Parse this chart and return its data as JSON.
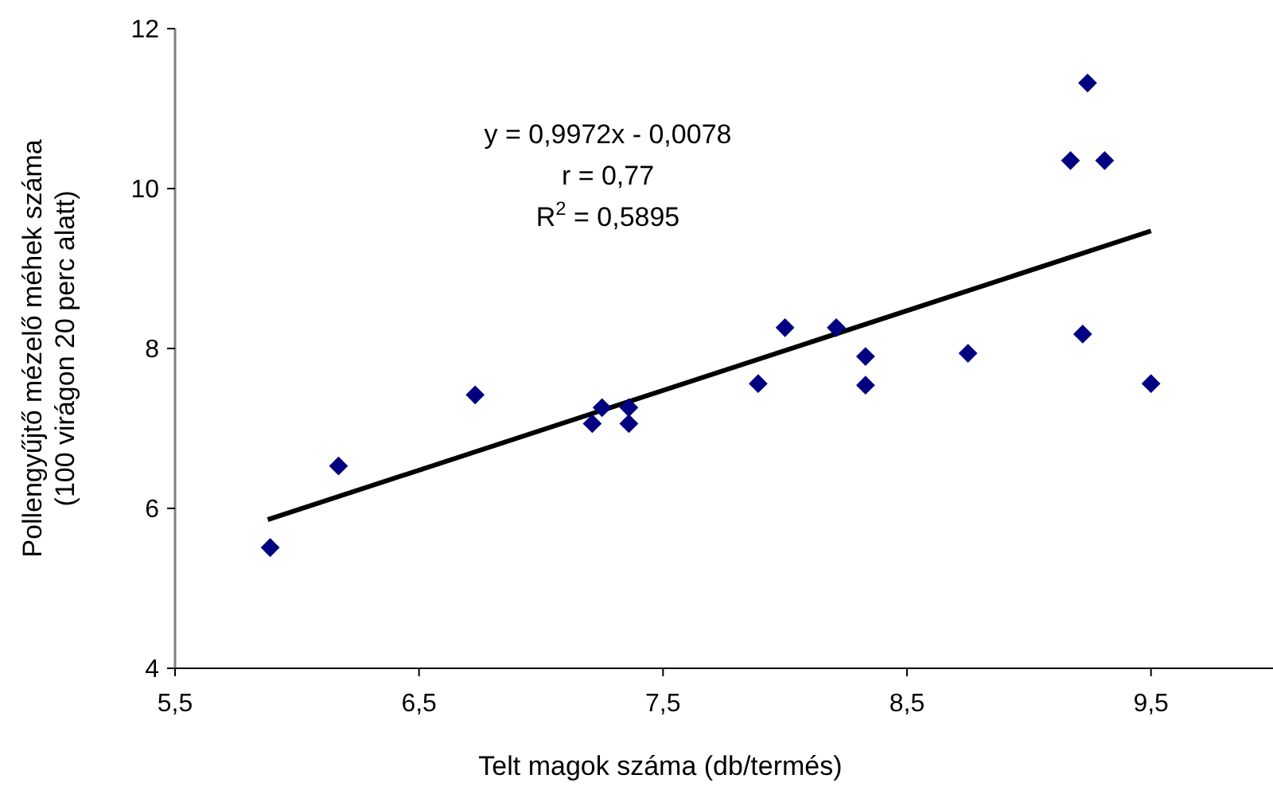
{
  "chart_data": {
    "type": "scatter",
    "xlabel": "Telt magok száma (db/termés)",
    "ylabel": "Pollengyűjtő mézelő méhek száma\n(100 virágon 20 perc alatt)",
    "xlim": [
      5.5,
      10
    ],
    "xticks": [
      {
        "value": 5.5,
        "label": "5,5"
      },
      {
        "value": 6.5,
        "label": "6,5"
      },
      {
        "value": 7.5,
        "label": "7,5"
      },
      {
        "value": 8.5,
        "label": "8,5"
      },
      {
        "value": 9.5,
        "label": "9,5"
      }
    ],
    "ylim": [
      4,
      12
    ],
    "yticks": [
      4,
      6,
      8,
      10,
      12
    ],
    "grid": false,
    "marker": "diamond",
    "annotations": [
      "y = 0,9972x - 0,0078",
      "r = 0,77",
      "R$^{2}$ = 0,5895"
    ],
    "series": [
      {
        "color": "#000080",
        "x": [
          5.89,
          6.17,
          6.73,
          7.21,
          7.25,
          7.36,
          7.36,
          7.89,
          8.0,
          8.21,
          8.33,
          8.33,
          8.75,
          9.22,
          9.17,
          9.24,
          9.31,
          9.5
        ],
        "values": [
          5.51,
          6.53,
          7.42,
          7.06,
          7.26,
          7.26,
          7.06,
          7.56,
          8.26,
          8.26,
          7.9,
          7.54,
          7.94,
          8.18,
          10.35,
          11.32,
          10.35,
          7.56
        ]
      },
      {
        "type": "line",
        "color": "#000000",
        "marker": "none",
        "line_style": "solid",
        "x": [
          5.88,
          9.5
        ],
        "values": [
          5.86,
          9.47
        ]
      }
    ]
  }
}
